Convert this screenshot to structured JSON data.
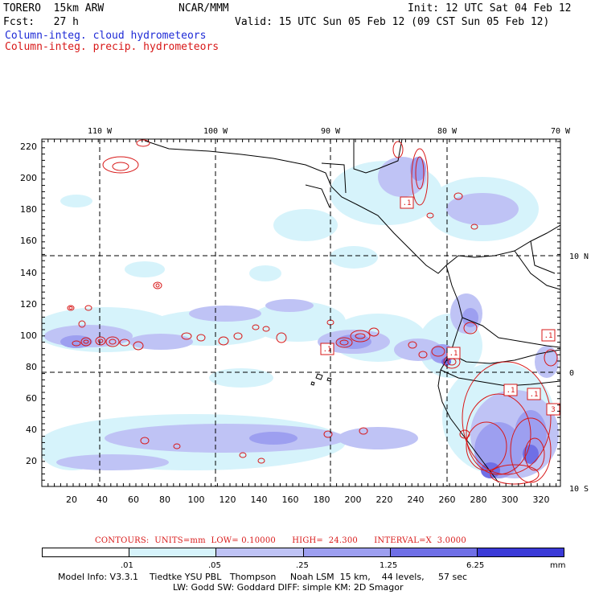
{
  "header": {
    "model": "TORERO  15km ARW",
    "center": "NCAR/MMM",
    "init": "Init: 12 UTC Sat 04 Feb 12",
    "fcst": "Fcst:   27 h",
    "valid": "Valid: 15 UTC Sun 05 Feb 12 (09 CST Sun 05 Feb 12)",
    "field_cloud": "Column-integ. cloud hydrometeors",
    "field_precip": "Column-integ. precip. hydrometeors"
  },
  "colors": {
    "cloud_label": "#1f2bd6",
    "precip_label": "#d81818",
    "contour": "#d81818",
    "coast": "#000000"
  },
  "map": {
    "top_lon_labels": [
      "110 W",
      "100 W",
      "90 W",
      "80 W",
      "70 W"
    ],
    "right_lat_labels": [
      "10 N",
      "0",
      "10 S"
    ],
    "y_ticks": [
      "20",
      "40",
      "60",
      "80",
      "100",
      "120",
      "140",
      "160",
      "180",
      "200",
      "220"
    ],
    "x_ticks": [
      "20",
      "40",
      "60",
      "80",
      "100",
      "120",
      "140",
      "160",
      "180",
      "200",
      "220",
      "240",
      "260",
      "280",
      "300",
      "320"
    ],
    "contour_labels": [
      ".1",
      ".1",
      ".1",
      ".1",
      ".1",
      ".1",
      "3"
    ]
  },
  "legend": {
    "contour_note": "CONTOURS:  UNITS=mm  LOW= 0.10000      HIGH=  24.300      INTERVAL=X  3.0000",
    "colorbar_colors": [
      "#ffffff",
      "#d6f3fb",
      "#bfc3f5",
      "#9d9ff0",
      "#6f6fe6",
      "#3b3ad8"
    ],
    "colorbar_labels": [
      ".01",
      ".05",
      ".25",
      "1.25",
      "6.25"
    ],
    "units": "mm"
  },
  "footer": {
    "line1": "Model Info: V3.3.1    Tiedtke YSU PBL   Thompson     Noah LSM  15 km,    44 levels,     57 sec",
    "line2": "LW: Godd SW: Goddard DIFF: simple KM: 2D Smagor"
  }
}
